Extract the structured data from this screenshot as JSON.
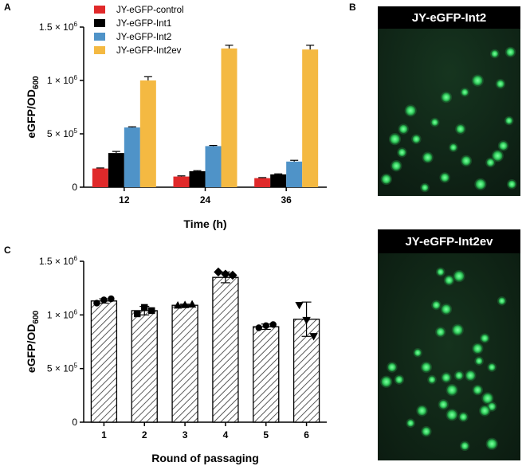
{
  "panels": {
    "a": "A",
    "b": "B",
    "c": "C"
  },
  "chart_data": [
    {
      "type": "bar",
      "panel": "A",
      "categories": [
        "12",
        "24",
        "36"
      ],
      "series": [
        {
          "name": "JY-eGFP-control",
          "color": "#e0292a",
          "values": [
            175000,
            100000,
            85000
          ],
          "errors": [
            5000,
            6000,
            5000
          ]
        },
        {
          "name": "JY-eGFP-Int1",
          "color": "#000000",
          "values": [
            320000,
            150000,
            120000
          ],
          "errors": [
            15000,
            5000,
            5000
          ]
        },
        {
          "name": "JY-eGFP-Int2",
          "color": "#4f93c8",
          "values": [
            560000,
            385000,
            240000
          ],
          "errors": [
            6000,
            6000,
            12000
          ]
        },
        {
          "name": "JY-eGFP-Int2ev",
          "color": "#f4b942",
          "values": [
            1000000,
            1300000,
            1290000
          ],
          "errors": [
            35000,
            30000,
            40000
          ]
        }
      ],
      "xlabel": "Time (h)",
      "ylabel": {
        "main": "eGFP/OD",
        "sub": "600"
      },
      "ylim": [
        0,
        1500000
      ],
      "yticks": [
        {
          "value": 0,
          "label": "0"
        },
        {
          "value": 500000,
          "base": "5 × 10",
          "exp": "5"
        },
        {
          "value": 1000000,
          "base": "1 × 10",
          "exp": "6"
        },
        {
          "value": 1500000,
          "base": "1.5 × 10",
          "exp": "6"
        }
      ],
      "legend": "top-left",
      "grid": false
    },
    {
      "type": "bar",
      "panel": "C",
      "categories": [
        "1",
        "2",
        "3",
        "4",
        "5",
        "6"
      ],
      "values": [
        1130000,
        1040000,
        1090000,
        1350000,
        890000,
        960000
      ],
      "errors": [
        20000,
        40000,
        10000,
        50000,
        25000,
        160000
      ],
      "points": [
        [
          1110000,
          1140000,
          1150000
        ],
        [
          1010000,
          1070000,
          1040000
        ],
        [
          1090000,
          1095000,
          1100000
        ],
        [
          1400000,
          1380000,
          1370000
        ],
        [
          880000,
          900000,
          910000
        ],
        [
          1090000,
          950000,
          800000
        ]
      ],
      "markers": [
        "circle",
        "square",
        "triangle",
        "diamond",
        "circle",
        "triangle-down"
      ],
      "fill_pattern": "hatched",
      "xlabel": "Round of passaging",
      "ylabel": {
        "main": "eGFP/OD",
        "sub": "600"
      },
      "ylim": [
        0,
        1500000
      ],
      "yticks": [
        {
          "value": 0,
          "label": "0"
        },
        {
          "value": 500000,
          "base": "5 × 10",
          "exp": "5"
        },
        {
          "value": 1000000,
          "base": "1 × 10",
          "exp": "6"
        },
        {
          "value": 1500000,
          "base": "1.5 × 10",
          "exp": "6"
        }
      ],
      "grid": false
    }
  ],
  "micrographs": {
    "top": {
      "title": "JY-eGFP-Int2",
      "cells": [
        [
          0.82,
          0.15
        ],
        [
          0.93,
          0.14
        ],
        [
          0.7,
          0.31
        ],
        [
          0.86,
          0.33
        ],
        [
          0.48,
          0.41
        ],
        [
          0.61,
          0.38
        ],
        [
          0.18,
          0.6
        ],
        [
          0.12,
          0.66
        ],
        [
          0.27,
          0.66
        ],
        [
          0.13,
          0.82
        ],
        [
          0.53,
          0.71
        ],
        [
          0.88,
          0.7
        ],
        [
          0.84,
          0.76
        ],
        [
          0.79,
          0.8
        ],
        [
          0.62,
          0.79
        ],
        [
          0.33,
          0.95
        ],
        [
          0.47,
          0.89
        ],
        [
          0.72,
          0.93
        ],
        [
          0.94,
          0.93
        ],
        [
          0.35,
          0.77
        ],
        [
          0.92,
          0.55
        ],
        [
          0.58,
          0.6
        ],
        [
          0.23,
          0.49
        ],
        [
          0.17,
          0.74
        ],
        [
          0.06,
          0.9
        ],
        [
          0.4,
          0.56
        ]
      ]
    },
    "bottom": {
      "title": "JY-eGFP-Int2ev",
      "cells": [
        [
          0.44,
          0.09
        ],
        [
          0.5,
          0.13
        ],
        [
          0.57,
          0.11
        ],
        [
          0.41,
          0.25
        ],
        [
          0.48,
          0.27
        ],
        [
          0.87,
          0.23
        ],
        [
          0.44,
          0.38
        ],
        [
          0.56,
          0.37
        ],
        [
          0.75,
          0.41
        ],
        [
          0.7,
          0.46
        ],
        [
          0.28,
          0.48
        ],
        [
          0.1,
          0.55
        ],
        [
          0.06,
          0.62
        ],
        [
          0.15,
          0.61
        ],
        [
          0.34,
          0.55
        ],
        [
          0.38,
          0.61
        ],
        [
          0.48,
          0.6
        ],
        [
          0.52,
          0.66
        ],
        [
          0.57,
          0.59
        ],
        [
          0.65,
          0.59
        ],
        [
          0.71,
          0.52
        ],
        [
          0.7,
          0.66
        ],
        [
          0.77,
          0.7
        ],
        [
          0.8,
          0.74
        ],
        [
          0.75,
          0.76
        ],
        [
          0.8,
          0.55
        ],
        [
          0.46,
          0.73
        ],
        [
          0.52,
          0.78
        ],
        [
          0.6,
          0.79
        ],
        [
          0.31,
          0.76
        ],
        [
          0.23,
          0.82
        ],
        [
          0.34,
          0.86
        ],
        [
          0.8,
          0.92
        ],
        [
          0.61,
          0.93
        ]
      ]
    }
  }
}
